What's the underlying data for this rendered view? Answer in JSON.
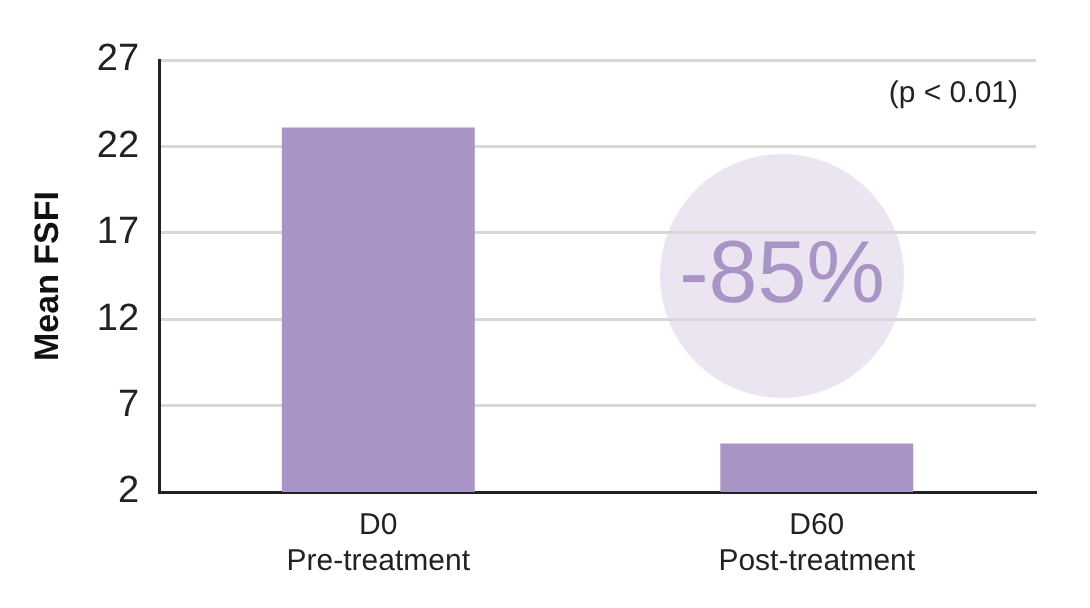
{
  "chart_data": {
    "type": "bar",
    "ylabel": "Mean FSFI",
    "categories": [
      "D0\nPre-treatment",
      "D60\nPost-treatment"
    ],
    "values": [
      23.1,
      4.8
    ],
    "color": "#a995c5",
    "ylim": [
      2,
      27
    ],
    "yticks": [
      2,
      7,
      12,
      17,
      22,
      27
    ],
    "grid": "y",
    "legend": false,
    "annotations": [
      "(p < 0.01)",
      "-85%"
    ]
  }
}
